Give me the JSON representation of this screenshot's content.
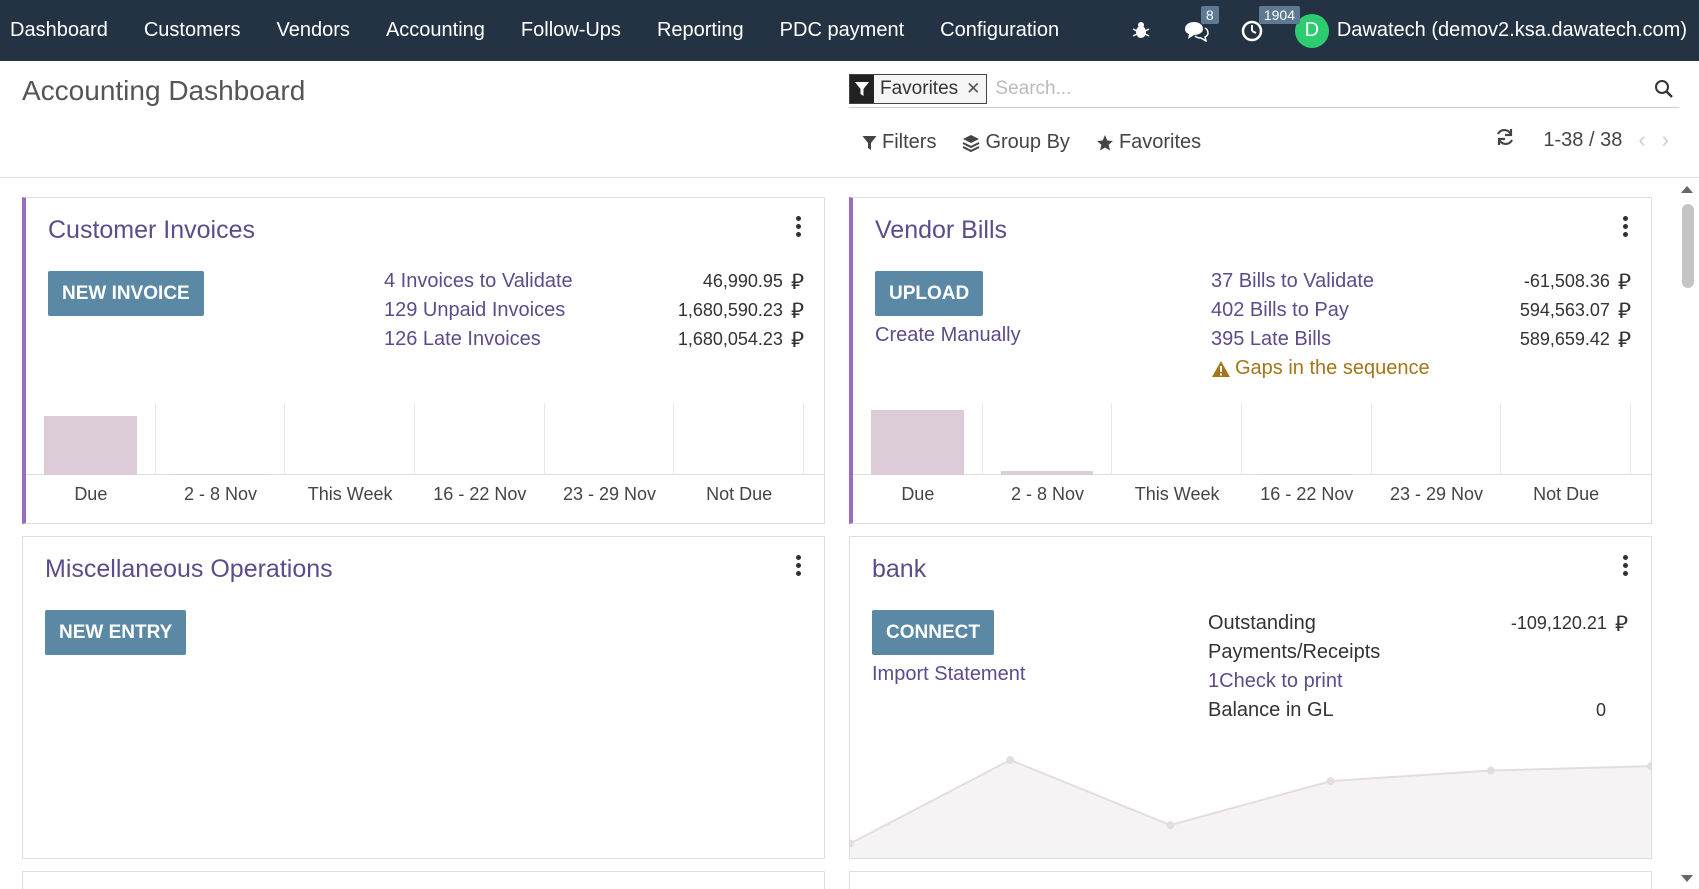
{
  "nav": {
    "items": [
      "Dashboard",
      "Customers",
      "Vendors",
      "Accounting",
      "Follow-Ups",
      "Reporting",
      "PDC payment",
      "Configuration"
    ],
    "messages_count": "8",
    "activities_count": "1904",
    "user_initial": "D",
    "user_name": "Dawatech (demov2.ksa.dawatech.com)"
  },
  "control": {
    "title": "Accounting Dashboard",
    "facet_label": "Favorites",
    "search_placeholder": "Search...",
    "filters_label": "Filters",
    "groupby_label": "Group By",
    "favorites_label": "Favorites",
    "pager": "1-38 / 38"
  },
  "currency_symbol": "⃁",
  "cards": {
    "customer_invoices": {
      "title": "Customer Invoices",
      "button": "NEW INVOICE",
      "stats": [
        {
          "label": "4 Invoices to Validate",
          "amount": "46,990.95"
        },
        {
          "label": "129 Unpaid Invoices",
          "amount": "1,680,590.23"
        },
        {
          "label": "126 Late Invoices",
          "amount": "1,680,054.23"
        }
      ],
      "chart_labels": [
        "Due",
        "2 - 8 Nov",
        "This Week",
        "16 - 22 Nov",
        "23 - 29 Nov",
        "Not Due"
      ],
      "chart_values": [
        0.82,
        0.02,
        0,
        0,
        0,
        0
      ]
    },
    "vendor_bills": {
      "title": "Vendor Bills",
      "button": "UPLOAD",
      "secondary_link": "Create Manually",
      "stats": [
        {
          "label": "37 Bills to Validate",
          "amount": "-61,508.36"
        },
        {
          "label": "402 Bills to Pay",
          "amount": "594,563.07"
        },
        {
          "label": "395 Late Bills",
          "amount": "589,659.42"
        }
      ],
      "warning": "Gaps in the sequence",
      "chart_labels": [
        "Due",
        "2 - 8 Nov",
        "This Week",
        "16 - 22 Nov",
        "23 - 29 Nov",
        "Not Due"
      ],
      "chart_values": [
        0.9,
        0.06,
        0,
        0.01,
        0,
        0
      ]
    },
    "misc": {
      "title": "Miscellaneous Operations",
      "button": "NEW ENTRY"
    },
    "bank": {
      "title": "bank",
      "button": "CONNECT",
      "secondary_link": "Import Statement",
      "outstanding_label_1": "Outstanding",
      "outstanding_label_2": "Payments/Receipts",
      "outstanding_amount": "-109,120.21",
      "check_link": "1Check to print",
      "balance_label": "Balance in GL",
      "balance_value": "0",
      "line_values": [
        0.05,
        1.0,
        0.26,
        0.76,
        0.88,
        0.93
      ]
    }
  }
}
